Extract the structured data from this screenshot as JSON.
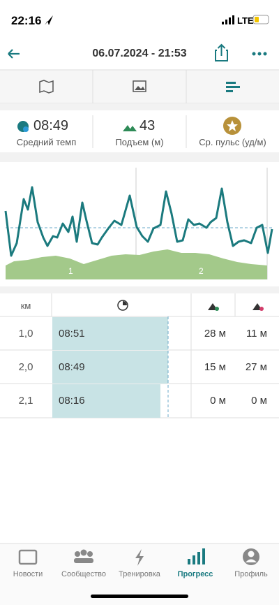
{
  "status": {
    "time": "22:16",
    "network": "LTE"
  },
  "header": {
    "title": "06.07.2024 - 21:53"
  },
  "stats": [
    {
      "value": "08:49",
      "label": "Средний темп"
    },
    {
      "value": "43",
      "label": "Подъем (м)"
    },
    {
      "label": "Ср. пульс (уд/м)"
    }
  ],
  "chart": {
    "lap_labels": [
      "1",
      "2"
    ]
  },
  "table": {
    "header": "км",
    "rows": [
      [
        "1,0",
        "08:51",
        "28 м",
        "11 м"
      ],
      [
        "2,0",
        "08:49",
        "15 м",
        "27 м"
      ],
      [
        "2,1",
        "08:16",
        "0 м",
        "0 м"
      ]
    ]
  },
  "nav": [
    "Новости",
    "Сообщество",
    "Тренировка",
    "Прогресс",
    "Профиль"
  ]
}
